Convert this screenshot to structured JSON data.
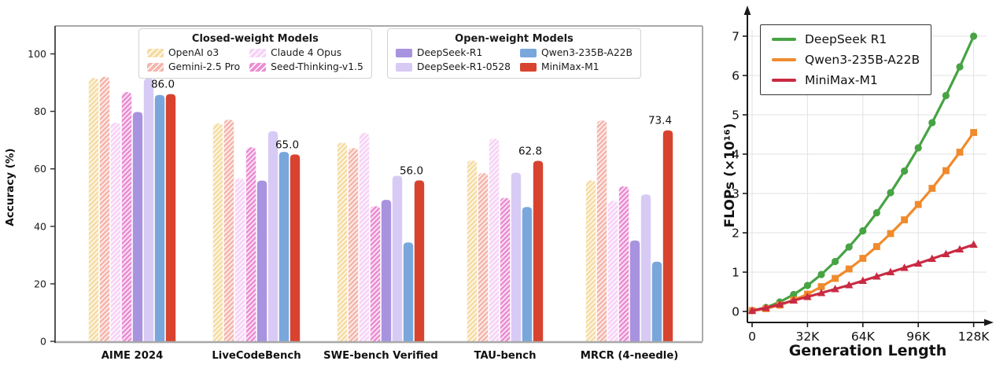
{
  "figure": {
    "background": "#ffffff"
  },
  "chart_data": [
    {
      "type": "bar",
      "title": "",
      "ylabel": "Accuracy (%)",
      "ylim": [
        0,
        110
      ],
      "yticks": [
        0,
        20,
        40,
        60,
        80,
        100
      ],
      "grid": false,
      "categories": [
        "AIME 2024",
        "LiveCodeBench",
        "SWE-bench Verified",
        "TAU-bench",
        "MRCR (4-needle)"
      ],
      "legend_groups": [
        {
          "title": "Closed-weight Models",
          "models": [
            "OpenAI o3",
            "Gemini-2.5 Pro",
            "Claude 4 Opus",
            "Seed-Thinking-v1.5"
          ]
        },
        {
          "title": "Open-weight Models",
          "models": [
            "DeepSeek-R1",
            "DeepSeek-R1-0528",
            "Qwen3-235B-A22B",
            "MiniMax-M1"
          ]
        }
      ],
      "series": [
        {
          "name": "OpenAI o3",
          "color": "#F5DCA2",
          "hatched": true,
          "values": [
            91.6,
            75.8,
            69.1,
            62.9,
            56.0
          ]
        },
        {
          "name": "Gemini-2.5 Pro",
          "color": "#F4B5AB",
          "hatched": true,
          "values": [
            92.0,
            77.1,
            67.2,
            58.5,
            76.8
          ]
        },
        {
          "name": "Claude 4 Opus",
          "color": "#F6D3F6",
          "hatched": true,
          "values": [
            76.0,
            56.6,
            72.5,
            70.5,
            48.9
          ]
        },
        {
          "name": "Seed-Thinking-v1.5",
          "color": "#EB8DD3",
          "hatched": true,
          "values": [
            86.7,
            67.5,
            47.0,
            49.9,
            53.9
          ]
        },
        {
          "name": "DeepSeek-R1",
          "color": "#A893DF",
          "hatched": false,
          "values": [
            79.8,
            55.9,
            49.2,
            null,
            35.1
          ]
        },
        {
          "name": "DeepSeek-R1-0528",
          "color": "#D7CBF5",
          "hatched": false,
          "values": [
            91.4,
            73.1,
            57.6,
            58.7,
            51.1
          ]
        },
        {
          "name": "Qwen3-235B-A22B",
          "color": "#79A7DC",
          "hatched": false,
          "values": [
            85.7,
            65.9,
            34.4,
            46.7,
            27.7
          ]
        },
        {
          "name": "MiniMax-M1",
          "color": "#D8432F",
          "hatched": false,
          "values": [
            86.0,
            65.0,
            56.0,
            62.8,
            73.4
          ],
          "annotate": true,
          "annotations": [
            "86.0",
            "65.0",
            "56.0",
            "62.8",
            "73.4"
          ]
        }
      ]
    },
    {
      "type": "line",
      "title": "",
      "xlabel": "Generation Length",
      "ylabel": "FLOPs (×10¹⁶)",
      "ylim": [
        0,
        7
      ],
      "yticks": [
        0,
        1,
        2,
        3,
        4,
        5,
        6,
        7
      ],
      "xticks": [
        {
          "value": 0,
          "label": "0"
        },
        {
          "value": 32,
          "label": "32K"
        },
        {
          "value": 64,
          "label": "64K"
        },
        {
          "value": 96,
          "label": "96K"
        },
        {
          "value": 128,
          "label": "128K"
        }
      ],
      "grid": true,
      "legend_position": "upper left",
      "x_unit": "K tokens",
      "x": [
        0,
        8,
        16,
        24,
        32,
        40,
        48,
        56,
        64,
        72,
        80,
        88,
        96,
        104,
        112,
        120,
        128
      ],
      "series": [
        {
          "name": "DeepSeek R1",
          "color": "#47A344",
          "marker": "circle",
          "values": [
            0.02,
            0.1,
            0.24,
            0.43,
            0.66,
            0.94,
            1.27,
            1.64,
            2.05,
            2.51,
            3.02,
            3.57,
            4.16,
            4.8,
            5.49,
            6.22,
            7.0
          ]
        },
        {
          "name": "Qwen3-235B-A22B",
          "color": "#F08A2D",
          "marker": "square",
          "values": [
            0.02,
            0.07,
            0.16,
            0.29,
            0.44,
            0.63,
            0.84,
            1.08,
            1.35,
            1.65,
            1.98,
            2.33,
            2.72,
            3.13,
            3.58,
            4.05,
            4.55
          ]
        },
        {
          "name": "MiniMax-M1",
          "color": "#C92A43",
          "marker": "triangle",
          "values": [
            0.02,
            0.09,
            0.18,
            0.28,
            0.37,
            0.47,
            0.57,
            0.67,
            0.78,
            0.89,
            1.0,
            1.11,
            1.22,
            1.34,
            1.46,
            1.58,
            1.7
          ]
        }
      ]
    }
  ]
}
